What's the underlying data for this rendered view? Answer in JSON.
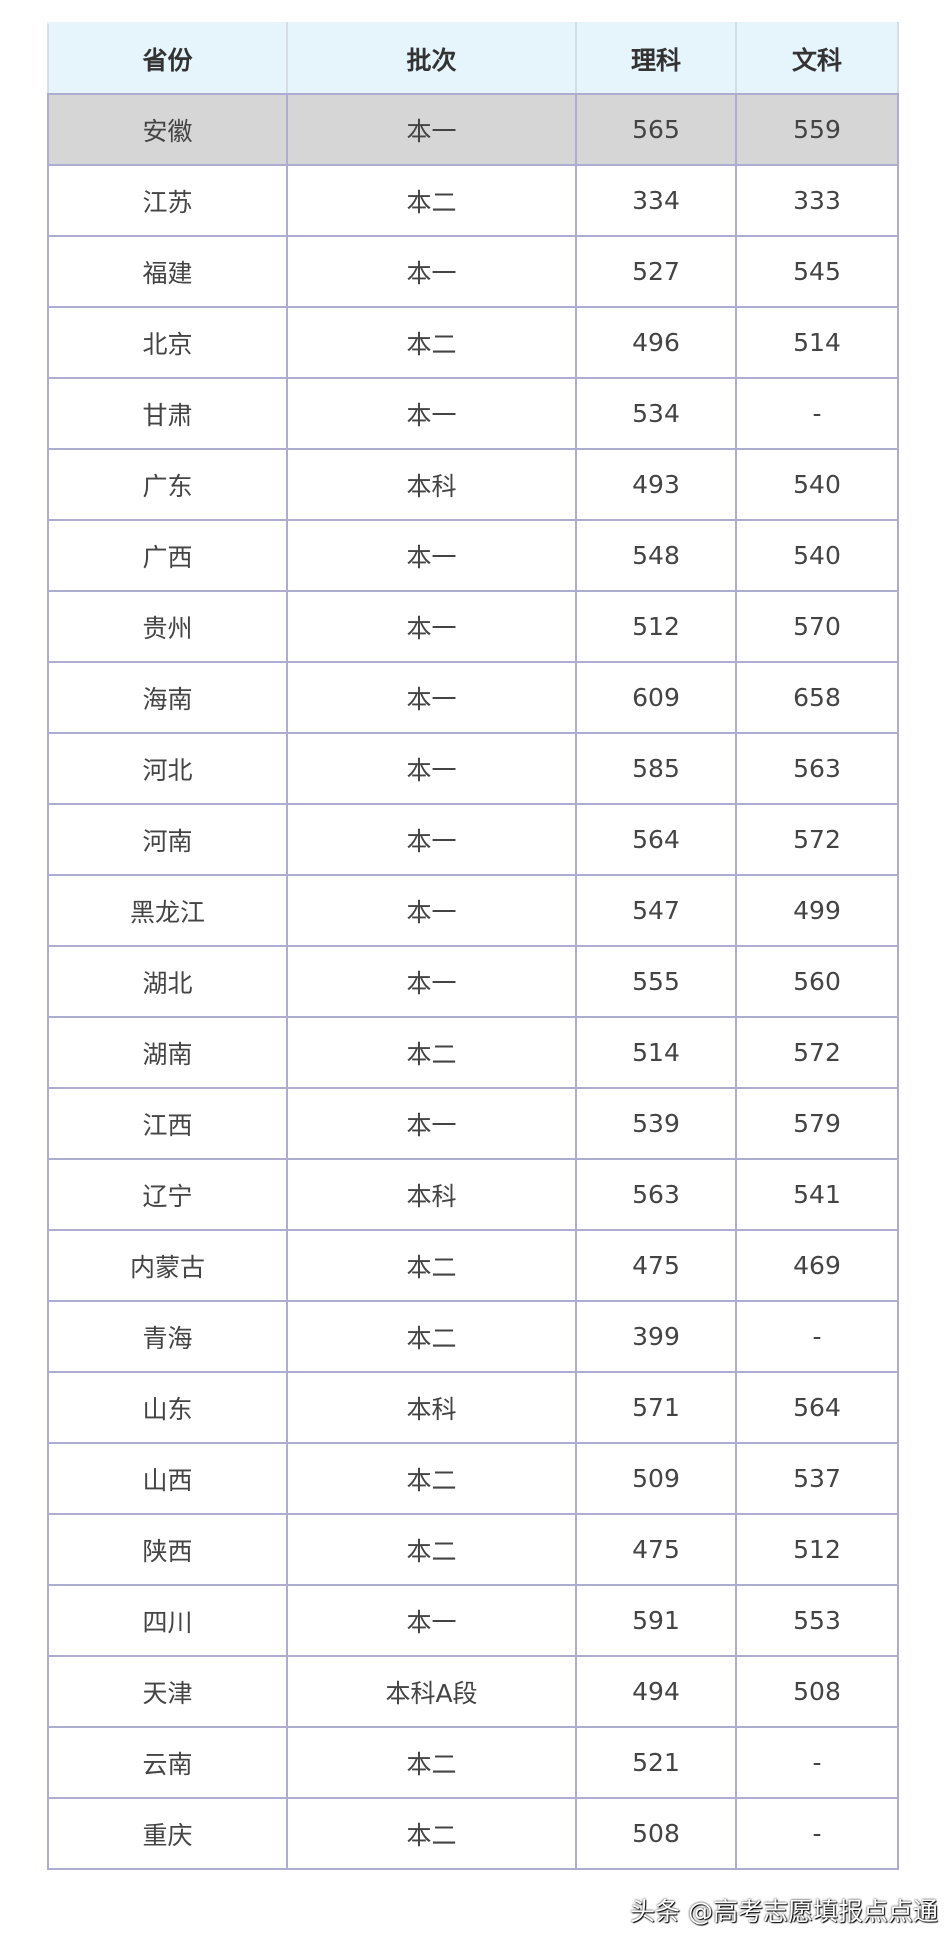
{
  "table": {
    "headers": [
      "省份",
      "批次",
      "理科",
      "文科"
    ],
    "highlight_row": 0,
    "rows": [
      [
        "安徽",
        "本一",
        "565",
        "559"
      ],
      [
        "江苏",
        "本二",
        "334",
        "333"
      ],
      [
        "福建",
        "本一",
        "527",
        "545"
      ],
      [
        "北京",
        "本二",
        "496",
        "514"
      ],
      [
        "甘肃",
        "本一",
        "534",
        "-"
      ],
      [
        "广东",
        "本科",
        "493",
        "540"
      ],
      [
        "广西",
        "本一",
        "548",
        "540"
      ],
      [
        "贵州",
        "本一",
        "512",
        "570"
      ],
      [
        "海南",
        "本一",
        "609",
        "658"
      ],
      [
        "河北",
        "本一",
        "585",
        "563"
      ],
      [
        "河南",
        "本一",
        "564",
        "572"
      ],
      [
        "黑龙江",
        "本一",
        "547",
        "499"
      ],
      [
        "湖北",
        "本一",
        "555",
        "560"
      ],
      [
        "湖南",
        "本二",
        "514",
        "572"
      ],
      [
        "江西",
        "本一",
        "539",
        "579"
      ],
      [
        "辽宁",
        "本科",
        "563",
        "541"
      ],
      [
        "内蒙古",
        "本二",
        "475",
        "469"
      ],
      [
        "青海",
        "本二",
        "399",
        "-"
      ],
      [
        "山东",
        "本科",
        "571",
        "564"
      ],
      [
        "山西",
        "本二",
        "509",
        "537"
      ],
      [
        "陕西",
        "本二",
        "475",
        "512"
      ],
      [
        "四川",
        "本一",
        "591",
        "553"
      ],
      [
        "天津",
        "本科A段",
        "494",
        "508"
      ],
      [
        "云南",
        "本二",
        "521",
        "-"
      ],
      [
        "重庆",
        "本二",
        "508",
        "-"
      ]
    ]
  },
  "watermark": "头条 @高考志愿填报点点通",
  "colors": {
    "header_bg": "#e6f4fc",
    "highlight_bg": "#d7d6d6",
    "border": "#aeacd0"
  }
}
